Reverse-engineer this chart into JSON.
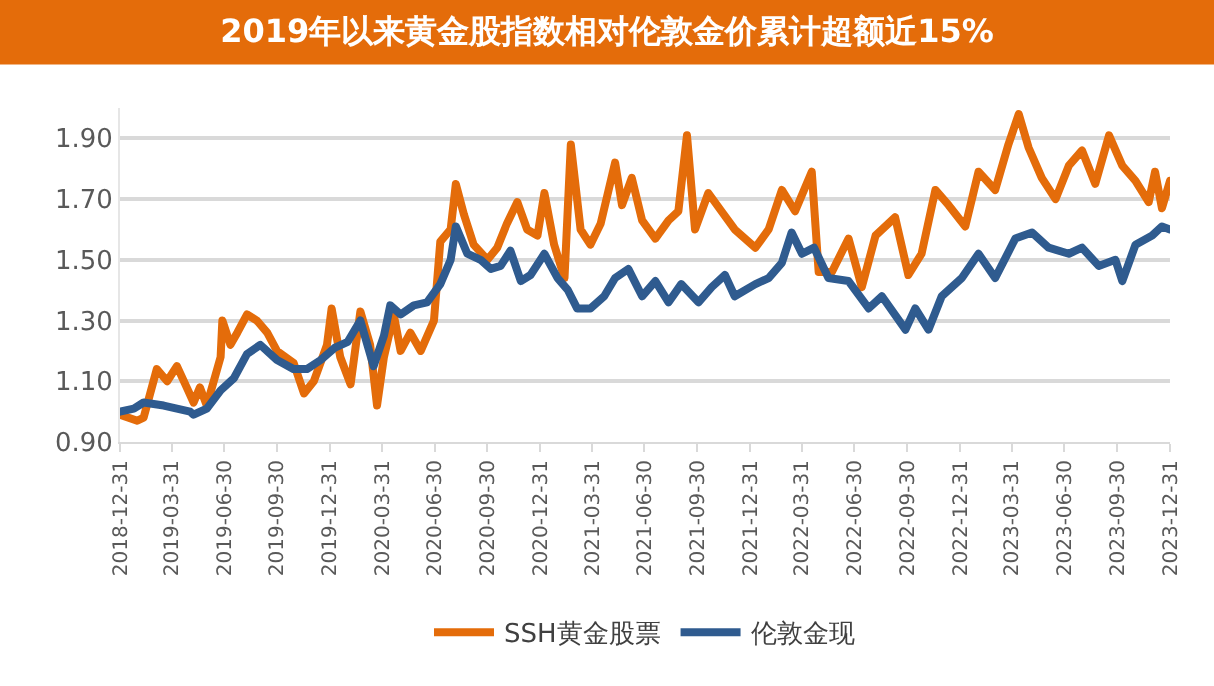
{
  "chart_data": {
    "type": "line",
    "title": "2019年以来黄金股指数相对伦敦金价累计超额近15%",
    "xlim": [
      "2018-12-31",
      "2023-12-31"
    ],
    "xticks": [
      "2018-12-31",
      "2019-03-31",
      "2019-06-30",
      "2019-09-30",
      "2019-12-31",
      "2020-03-31",
      "2020-06-30",
      "2020-09-30",
      "2020-12-31",
      "2021-03-31",
      "2021-06-30",
      "2021-09-30",
      "2021-12-31",
      "2022-03-31",
      "2022-06-30",
      "2022-09-30",
      "2022-12-31",
      "2023-03-31",
      "2023-06-30",
      "2023-09-30",
      "2023-12-31"
    ],
    "ylim": [
      0.9,
      2.0
    ],
    "yticks": [
      {
        "value": 0.9,
        "label": "0.90"
      },
      {
        "value": 1.1,
        "label": "1.10"
      },
      {
        "value": 1.3,
        "label": "1.30"
      },
      {
        "value": 1.5,
        "label": "1.50"
      },
      {
        "value": 1.7,
        "label": "1.70"
      },
      {
        "value": 1.9,
        "label": "1.90"
      }
    ],
    "grid": "y",
    "legend": "bottom",
    "marker": "none",
    "line_style": "solid",
    "series": [
      {
        "name": "SSH黄金股票",
        "color": "#e46c0a",
        "x": [
          "2018-12-31",
          "2019-01-30",
          "2019-02-10",
          "2019-03-05",
          "2019-03-23",
          "2019-04-09",
          "2019-04-26",
          "2019-05-08",
          "2019-05-19",
          "2019-05-31",
          "2019-06-24",
          "2019-06-27",
          "2019-07-11",
          "2019-07-23",
          "2019-08-09",
          "2019-08-26",
          "2019-09-13",
          "2019-09-30",
          "2019-10-29",
          "2019-11-16",
          "2019-12-03",
          "2019-12-26",
          "2020-01-03",
          "2020-01-18",
          "2020-02-05",
          "2020-02-22",
          "2020-03-10",
          "2020-03-22",
          "2020-04-03",
          "2020-04-20",
          "2020-05-02",
          "2020-05-19",
          "2020-06-06",
          "2020-06-29",
          "2020-07-10",
          "2020-07-28",
          "2020-08-06",
          "2020-08-20",
          "2020-09-06",
          "2020-09-30",
          "2020-10-17",
          "2020-11-03",
          "2020-11-21",
          "2020-12-08",
          "2020-12-26",
          "2021-01-07",
          "2021-01-24",
          "2021-02-11",
          "2021-02-22",
          "2021-03-11",
          "2021-03-28",
          "2021-04-15",
          "2021-05-10",
          "2021-05-22",
          "2021-06-08",
          "2021-06-26",
          "2021-07-19",
          "2021-08-11",
          "2021-08-28",
          "2021-09-12",
          "2021-09-26",
          "2021-10-19",
          "2021-11-11",
          "2021-12-04",
          "2022-01-09",
          "2022-02-01",
          "2022-02-24",
          "2022-03-19",
          "2022-04-17",
          "2022-04-29",
          "2022-05-22",
          "2022-06-20",
          "2022-07-13",
          "2022-08-06",
          "2022-09-09",
          "2022-10-02",
          "2022-10-25",
          "2022-11-18",
          "2022-12-11",
          "2023-01-09",
          "2023-02-01",
          "2023-03-02",
          "2023-03-25",
          "2023-04-12",
          "2023-04-29",
          "2023-05-22",
          "2023-06-15",
          "2023-07-08",
          "2023-07-31",
          "2023-08-23",
          "2023-09-16",
          "2023-10-09",
          "2023-11-01",
          "2023-11-24",
          "2023-12-05",
          "2023-12-17",
          "2023-12-31"
        ],
        "values": [
          0.99,
          0.97,
          0.98,
          1.14,
          1.1,
          1.15,
          1.08,
          1.03,
          1.08,
          1.02,
          1.18,
          1.3,
          1.22,
          1.26,
          1.32,
          1.3,
          1.26,
          1.2,
          1.16,
          1.06,
          1.1,
          1.22,
          1.34,
          1.18,
          1.09,
          1.33,
          1.22,
          1.02,
          1.18,
          1.32,
          1.2,
          1.26,
          1.2,
          1.3,
          1.56,
          1.6,
          1.75,
          1.65,
          1.55,
          1.5,
          1.54,
          1.62,
          1.69,
          1.6,
          1.58,
          1.72,
          1.55,
          1.44,
          1.88,
          1.6,
          1.55,
          1.62,
          1.82,
          1.68,
          1.77,
          1.63,
          1.57,
          1.63,
          1.66,
          1.91,
          1.6,
          1.72,
          1.66,
          1.6,
          1.54,
          1.6,
          1.73,
          1.66,
          1.79,
          1.46,
          1.46,
          1.57,
          1.41,
          1.58,
          1.64,
          1.45,
          1.52,
          1.73,
          1.68,
          1.61,
          1.79,
          1.73,
          1.88,
          1.98,
          1.87,
          1.77,
          1.7,
          1.81,
          1.86,
          1.75,
          1.91,
          1.81,
          1.76,
          1.69,
          1.79,
          1.67,
          1.76
        ]
      },
      {
        "name": "伦敦金现",
        "color": "#2f5b8f",
        "x": [
          "2018-12-31",
          "2019-01-24",
          "2019-02-10",
          "2019-03-17",
          "2019-04-09",
          "2019-05-02",
          "2019-05-08",
          "2019-05-31",
          "2019-06-24",
          "2019-07-17",
          "2019-08-09",
          "2019-09-01",
          "2019-09-30",
          "2019-10-29",
          "2019-11-21",
          "2019-12-15",
          "2020-01-08",
          "2020-01-31",
          "2020-02-22",
          "2020-03-16",
          "2020-04-03",
          "2020-04-14",
          "2020-05-02",
          "2020-05-25",
          "2020-06-17",
          "2020-07-10",
          "2020-07-28",
          "2020-08-06",
          "2020-08-26",
          "2020-09-18",
          "2020-10-06",
          "2020-10-23",
          "2020-11-09",
          "2020-11-27",
          "2020-12-14",
          "2021-01-07",
          "2021-01-30",
          "2021-02-17",
          "2021-03-05",
          "2021-03-28",
          "2021-04-21",
          "2021-05-10",
          "2021-06-02",
          "2021-06-26",
          "2021-07-19",
          "2021-08-11",
          "2021-09-02",
          "2021-10-02",
          "2021-10-25",
          "2021-11-17",
          "2021-12-04",
          "2022-01-09",
          "2022-02-01",
          "2022-02-24",
          "2022-03-13",
          "2022-03-31",
          "2022-04-21",
          "2022-05-16",
          "2022-06-20",
          "2022-07-25",
          "2022-08-17",
          "2022-09-27",
          "2022-10-14",
          "2022-11-06",
          "2022-11-29",
          "2023-01-03",
          "2023-02-01",
          "2023-03-02",
          "2023-04-06",
          "2023-05-05",
          "2023-06-03",
          "2023-07-08",
          "2023-07-31",
          "2023-08-29",
          "2023-09-27",
          "2023-10-09",
          "2023-11-01",
          "2023-11-30",
          "2023-12-17",
          "2023-12-31"
        ],
        "values": [
          1.0,
          1.01,
          1.03,
          1.02,
          1.01,
          1.0,
          0.99,
          1.01,
          1.07,
          1.11,
          1.19,
          1.22,
          1.17,
          1.14,
          1.14,
          1.17,
          1.21,
          1.23,
          1.3,
          1.15,
          1.25,
          1.35,
          1.32,
          1.35,
          1.36,
          1.42,
          1.5,
          1.61,
          1.52,
          1.5,
          1.47,
          1.48,
          1.53,
          1.43,
          1.45,
          1.52,
          1.44,
          1.4,
          1.34,
          1.34,
          1.38,
          1.44,
          1.47,
          1.38,
          1.43,
          1.36,
          1.42,
          1.36,
          1.41,
          1.45,
          1.38,
          1.42,
          1.44,
          1.49,
          1.59,
          1.52,
          1.54,
          1.44,
          1.43,
          1.34,
          1.38,
          1.27,
          1.34,
          1.27,
          1.38,
          1.44,
          1.52,
          1.44,
          1.57,
          1.59,
          1.54,
          1.52,
          1.54,
          1.48,
          1.5,
          1.43,
          1.55,
          1.58,
          1.61,
          1.6
        ]
      }
    ]
  }
}
